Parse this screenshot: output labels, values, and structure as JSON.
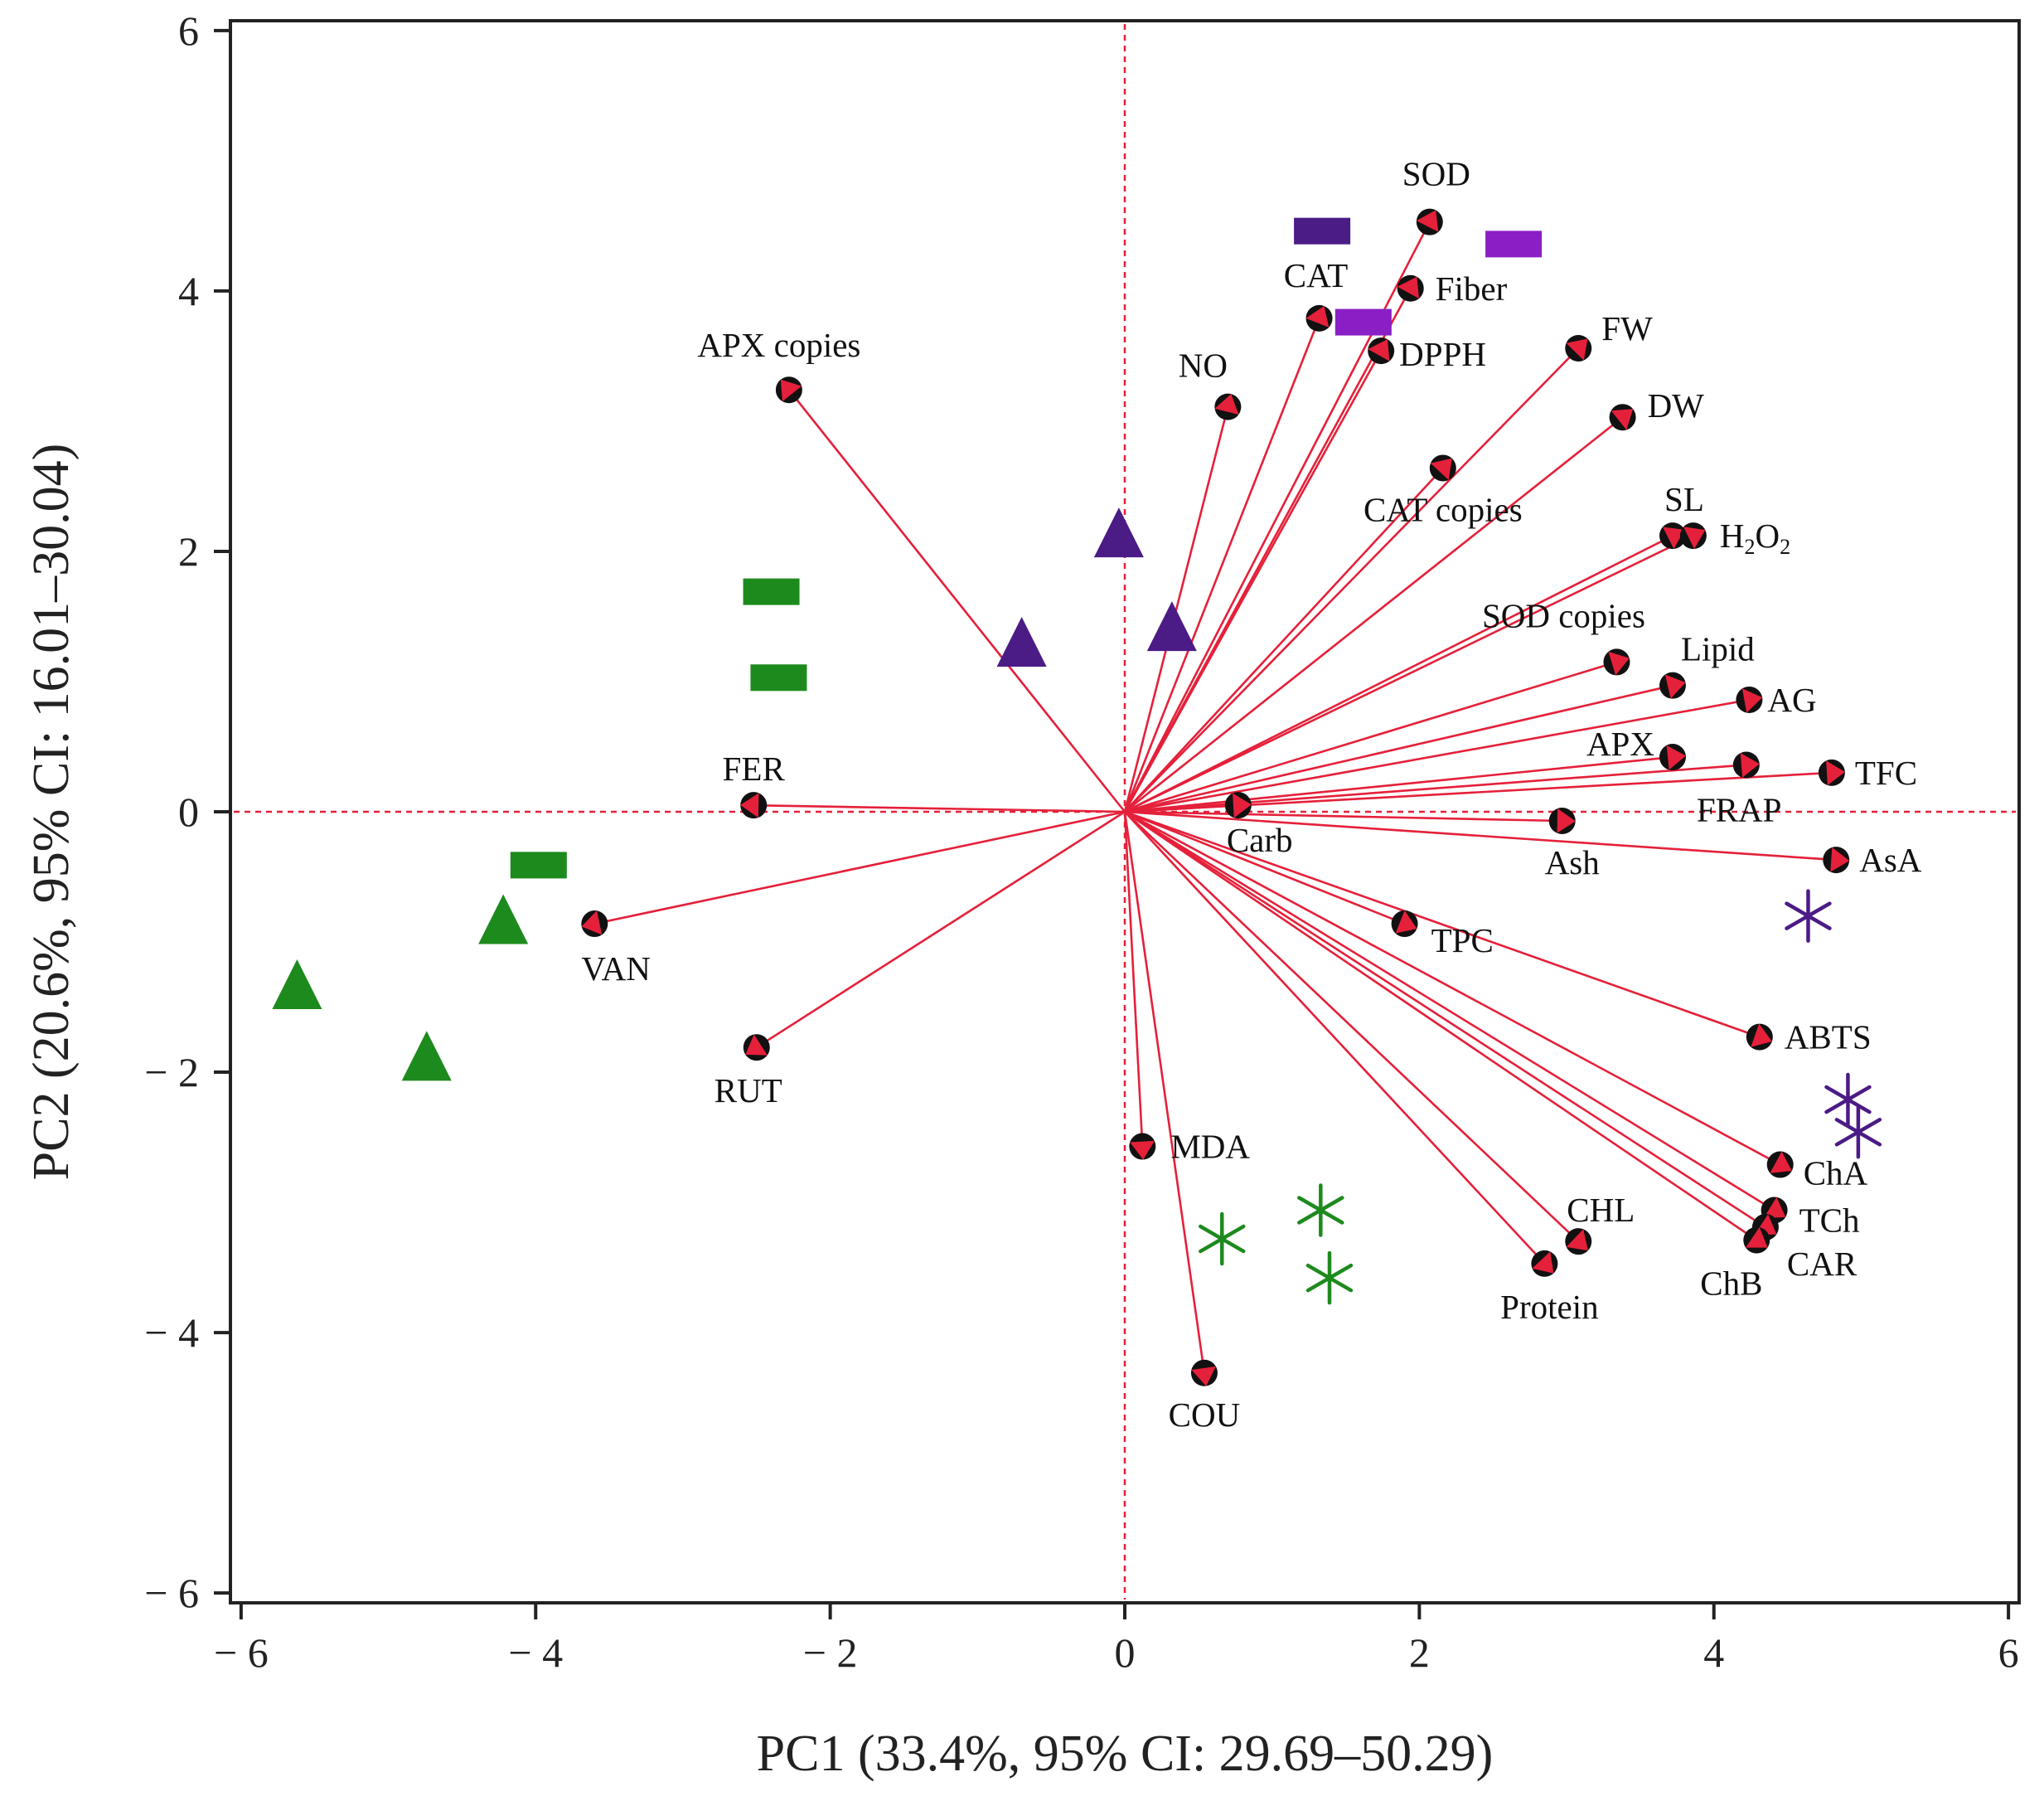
{
  "chart_data": {
    "type": "scatter",
    "subtype": "pca-biplot",
    "title": "",
    "xlabel": "PC1 (33.4%, 95% CI: 29.69–50.29)",
    "ylabel": "PC2 (20.6%, 95% CI: 16.01–30.04)",
    "xlim": [
      -6.05,
      6.05
    ],
    "ylim": [
      -6.05,
      6.05
    ],
    "xticks": [
      -6,
      -4,
      -2,
      0,
      2,
      4,
      6
    ],
    "yticks": [
      -6,
      -4,
      -2,
      0,
      2,
      4,
      6
    ],
    "xtick_labels": [
      "− 6",
      "− 4",
      "− 2",
      "0",
      "2",
      "4",
      "6"
    ],
    "ytick_labels": [
      "− 6",
      "− 4",
      "− 2",
      "0",
      "2",
      "4",
      "6"
    ],
    "colors": {
      "vector": "#e5203a",
      "reference_line": "#e5203a",
      "point_outline": "#111111",
      "green": "#1d8a1d",
      "purple_dark": "#4b1b86",
      "purple_light": "#8a1fc6",
      "axis": "#222222"
    },
    "loadings": [
      {
        "name": "SOD",
        "label": "SOD",
        "x": 2.07,
        "y": 4.53
      },
      {
        "name": "CAT",
        "label": "CAT",
        "x": 1.32,
        "y": 3.79
      },
      {
        "name": "Fiber",
        "label": "Fiber",
        "x": 1.94,
        "y": 4.02
      },
      {
        "name": "DPPH",
        "label": "DPPH",
        "x": 1.74,
        "y": 3.54
      },
      {
        "name": "FW",
        "label": "FW",
        "x": 3.08,
        "y": 3.56
      },
      {
        "name": "DW",
        "label": "DW",
        "x": 3.38,
        "y": 3.03
      },
      {
        "name": "NO",
        "label": "NO",
        "x": 0.7,
        "y": 3.11
      },
      {
        "name": "APX copies",
        "label": "APX copies",
        "x": -2.28,
        "y": 3.24
      },
      {
        "name": "CAT copies",
        "label": "CAT copies",
        "x": 2.16,
        "y": 2.64
      },
      {
        "name": "SL",
        "label": "SL",
        "x": 3.72,
        "y": 2.12
      },
      {
        "name": "H2O2",
        "label": "H",
        "label_sub": "2",
        "label_mid": "O",
        "label_sub2": "2",
        "x": 3.86,
        "y": 2.12
      },
      {
        "name": "SOD copies",
        "label": "SOD copies",
        "x": 3.34,
        "y": 1.15
      },
      {
        "name": "Lipid",
        "label": "Lipid",
        "x": 3.72,
        "y": 0.97
      },
      {
        "name": "AG",
        "label": "AG",
        "x": 4.24,
        "y": 0.86
      },
      {
        "name": "APX",
        "label": "APX",
        "x": 3.72,
        "y": 0.42
      },
      {
        "name": "FRAP",
        "label": "FRAP",
        "x": 4.22,
        "y": 0.36
      },
      {
        "name": "TFC",
        "label": "TFC",
        "x": 4.8,
        "y": 0.3
      },
      {
        "name": "Carb",
        "label": "Carb",
        "x": 0.77,
        "y": 0.05
      },
      {
        "name": "Ash",
        "label": "Ash",
        "x": 2.97,
        "y": -0.07
      },
      {
        "name": "AsA",
        "label": "AsA",
        "x": 4.83,
        "y": -0.37
      },
      {
        "name": "FER",
        "label": "FER",
        "x": -2.52,
        "y": 0.05
      },
      {
        "name": "VAN",
        "label": "VAN",
        "x": -3.6,
        "y": -0.86
      },
      {
        "name": "RUT",
        "label": "RUT",
        "x": -2.5,
        "y": -1.81
      },
      {
        "name": "TPC",
        "label": "TPC",
        "x": 1.9,
        "y": -0.86
      },
      {
        "name": "ABTS",
        "label": "ABTS",
        "x": 4.31,
        "y": -1.73
      },
      {
        "name": "ChA",
        "label": "ChA",
        "x": 4.45,
        "y": -2.71
      },
      {
        "name": "TCh",
        "label": "TCh",
        "x": 4.41,
        "y": -3.06
      },
      {
        "name": "CAR",
        "label": "CAR",
        "x": 4.35,
        "y": -3.19
      },
      {
        "name": "ChB",
        "label": "ChB",
        "x": 4.29,
        "y": -3.29
      },
      {
        "name": "CHL",
        "label": "CHL",
        "x": 3.08,
        "y": -3.3
      },
      {
        "name": "Protein",
        "label": "Protein",
        "x": 2.85,
        "y": -3.47
      },
      {
        "name": "MDA",
        "label": "MDA",
        "x": 0.12,
        "y": -2.57
      },
      {
        "name": "COU",
        "label": "COU",
        "x": 0.54,
        "y": -4.31
      }
    ],
    "samples": [
      {
        "shape": "rect",
        "color": "purple_dark",
        "x": 1.34,
        "y": 4.46
      },
      {
        "shape": "rect",
        "color": "purple_light",
        "x": 2.64,
        "y": 4.36
      },
      {
        "shape": "rect",
        "color": "purple_light",
        "x": 1.62,
        "y": 3.76
      },
      {
        "shape": "triangle",
        "color": "purple_dark",
        "x": -0.04,
        "y": 2.12
      },
      {
        "shape": "triangle",
        "color": "purple_dark",
        "x": -0.7,
        "y": 1.28
      },
      {
        "shape": "triangle",
        "color": "purple_dark",
        "x": 0.32,
        "y": 1.4
      },
      {
        "shape": "rect",
        "color": "green",
        "x": -2.4,
        "y": 1.69
      },
      {
        "shape": "rect",
        "color": "green",
        "x": -2.35,
        "y": 1.03
      },
      {
        "shape": "rect",
        "color": "green",
        "x": -3.98,
        "y": -0.41
      },
      {
        "shape": "triangle",
        "color": "green",
        "x": -4.22,
        "y": -0.85
      },
      {
        "shape": "triangle",
        "color": "green",
        "x": -5.62,
        "y": -1.35
      },
      {
        "shape": "triangle",
        "color": "green",
        "x": -4.74,
        "y": -1.9
      },
      {
        "shape": "asterisk",
        "color": "purple_dark",
        "x": 4.64,
        "y": -0.8
      },
      {
        "shape": "asterisk",
        "color": "purple_dark",
        "x": 4.91,
        "y": -2.21
      },
      {
        "shape": "asterisk",
        "color": "purple_dark",
        "x": 4.98,
        "y": -2.46
      },
      {
        "shape": "asterisk",
        "color": "green",
        "x": 0.66,
        "y": -3.28
      },
      {
        "shape": "asterisk",
        "color": "green",
        "x": 1.33,
        "y": -3.06
      },
      {
        "shape": "asterisk",
        "color": "green",
        "x": 1.39,
        "y": -3.58
      }
    ]
  }
}
